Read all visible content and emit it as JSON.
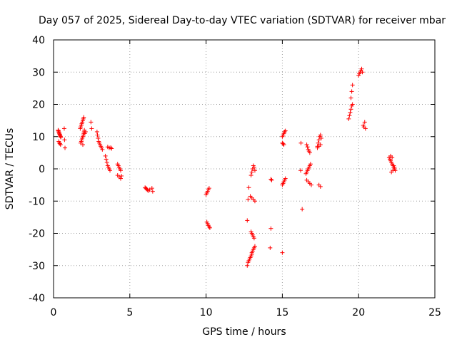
{
  "chart_data": {
    "type": "scatter",
    "title": "Day 057 of 2025, Sidereal Day-to-day VTEC variation (SDTVAR) for receiver mbar",
    "xlabel": "GPS time / hours",
    "ylabel": "SDTVAR / TECUs",
    "xlim": [
      0,
      25
    ],
    "ylim": [
      -40,
      40
    ],
    "xticks": [
      0,
      5,
      10,
      15,
      20,
      25
    ],
    "yticks": [
      -40,
      -30,
      -20,
      -10,
      0,
      10,
      20,
      30,
      40
    ],
    "xtick_labels": [
      "0",
      "5",
      "10",
      "15",
      "20",
      "25"
    ],
    "ytick_labels": [
      "-40",
      "-30",
      "-20",
      "-10",
      "0",
      "10",
      "20",
      "30",
      "40"
    ],
    "grid": true,
    "marker": "+",
    "color": "#ff0000",
    "series": [
      {
        "name": "SDTVAR",
        "x": [
          0.3,
          0.32,
          0.34,
          0.36,
          0.38,
          0.4,
          0.42,
          0.44,
          0.46,
          0.48,
          0.34,
          0.38,
          0.42,
          0.46,
          0.7,
          0.72,
          0.75,
          1.75,
          1.78,
          1.82,
          1.85,
          1.88,
          1.92,
          1.95,
          1.98,
          1.78,
          1.82,
          1.85,
          1.88,
          1.92,
          1.95,
          1.98,
          2.0,
          2.02,
          1.92,
          2.05,
          2.1,
          2.45,
          2.5,
          2.85,
          2.88,
          2.92,
          2.96,
          3.0,
          3.05,
          3.1,
          3.15,
          3.2,
          3.4,
          3.45,
          3.5,
          3.55,
          3.6,
          3.65,
          3.7,
          3.55,
          3.65,
          3.75,
          3.8,
          4.2,
          4.25,
          4.3,
          4.35,
          4.4,
          4.2,
          4.3,
          4.4,
          4.45,
          6.0,
          6.05,
          6.1,
          6.15,
          6.2,
          6.3,
          6.45,
          6.5,
          10.0,
          10.05,
          10.1,
          10.15,
          10.2,
          10.05,
          10.1,
          10.15,
          10.2,
          10.25,
          12.7,
          12.75,
          12.8,
          12.85,
          12.9,
          12.95,
          13.0,
          13.0,
          13.05,
          13.1,
          13.15,
          13.2,
          12.95,
          13.0,
          13.05,
          13.1,
          13.15,
          12.95,
          13.0,
          13.05,
          13.1,
          13.15,
          13.2,
          12.9,
          13.0,
          13.1,
          13.2,
          12.7,
          12.75,
          12.8,
          14.2,
          14.25,
          14.3,
          14.25,
          15.0,
          15.05,
          15.1,
          15.15,
          15.2,
          15.0,
          15.05,
          15.1,
          15.0,
          15.05,
          15.1,
          15.15,
          15.2,
          15.0,
          16.2,
          16.22,
          16.3,
          16.55,
          16.6,
          16.65,
          16.7,
          16.75,
          16.8,
          16.85,
          16.6,
          16.65,
          16.7,
          16.75,
          16.8,
          16.6,
          16.7,
          16.8,
          16.9,
          17.3,
          17.35,
          17.4,
          17.45,
          17.5,
          17.55,
          17.4,
          17.5,
          17.3,
          17.4,
          17.5,
          19.35,
          19.4,
          19.45,
          19.5,
          19.55,
          19.6,
          19.5,
          19.55,
          19.6,
          20.0,
          20.05,
          20.1,
          20.15,
          20.2,
          20.25,
          20.3,
          20.35,
          20.4,
          20.45,
          22.0,
          22.05,
          22.1,
          22.15,
          22.2,
          22.25,
          22.3,
          22.35,
          22.4,
          22.1,
          22.2,
          22.3,
          22.15,
          22.25,
          22.35
        ],
        "y": [
          12.0,
          11.8,
          11.5,
          11.2,
          11.0,
          10.7,
          10.5,
          10.2,
          10.0,
          9.8,
          8.5,
          8.0,
          7.8,
          7.5,
          12.5,
          9.0,
          6.5,
          12.5,
          13.0,
          13.5,
          14.0,
          14.5,
          15.0,
          15.5,
          16.0,
          8.0,
          8.5,
          9.0,
          9.5,
          10.0,
          10.5,
          11.0,
          11.5,
          12.0,
          7.5,
          11.0,
          11.5,
          14.5,
          12.5,
          11.5,
          10.5,
          9.5,
          8.5,
          8.0,
          7.5,
          7.0,
          6.5,
          6.0,
          4.0,
          3.0,
          2.0,
          1.0,
          0.5,
          0.0,
          -0.5,
          6.8,
          6.5,
          6.6,
          6.3,
          1.5,
          1.0,
          0.5,
          0.0,
          -0.5,
          -2.0,
          -2.5,
          -3.0,
          -2.2,
          -5.8,
          -6.0,
          -6.2,
          -6.5,
          -6.8,
          -6.5,
          -6.0,
          -7.0,
          -8.0,
          -7.5,
          -7.0,
          -6.5,
          -6.0,
          -16.5,
          -17.0,
          -17.5,
          -18.0,
          -18.3,
          -30.0,
          -29.0,
          -28.5,
          -28.0,
          -27.5,
          -27.0,
          -26.5,
          -26.0,
          -25.5,
          -25.0,
          -24.5,
          -24.0,
          -19.5,
          -20.0,
          -20.5,
          -21.0,
          -21.5,
          -2.0,
          -1.0,
          0.0,
          1.0,
          0.5,
          -0.5,
          -8.5,
          -9.0,
          -9.5,
          -10.0,
          -16.0,
          -9.5,
          -5.8,
          -24.5,
          -18.5,
          -3.5,
          -3.2,
          10.0,
          10.5,
          11.0,
          11.5,
          11.8,
          8.0,
          7.8,
          7.5,
          -5.0,
          -4.5,
          -4.0,
          -3.5,
          -3.0,
          -26.0,
          -0.5,
          8.0,
          -12.5,
          -1.5,
          -1.0,
          -0.5,
          0.0,
          0.5,
          1.0,
          1.5,
          7.5,
          6.8,
          6.0,
          5.5,
          5.0,
          -3.5,
          -4.0,
          -4.5,
          -5.0,
          7.0,
          8.0,
          9.0,
          10.0,
          10.5,
          9.5,
          -5.0,
          -5.5,
          6.5,
          7.0,
          7.5,
          15.5,
          16.5,
          17.5,
          18.5,
          19.5,
          20.0,
          22.0,
          24.0,
          26.0,
          29.0,
          29.5,
          30.0,
          30.5,
          31.0,
          30.0,
          13.5,
          13.0,
          14.5,
          12.5,
          3.5,
          3.0,
          2.5,
          2.0,
          1.5,
          1.0,
          0.5,
          0.0,
          -0.5,
          4.0,
          3.5,
          1.0,
          -1.0,
          -0.5,
          0.5
        ]
      }
    ]
  }
}
